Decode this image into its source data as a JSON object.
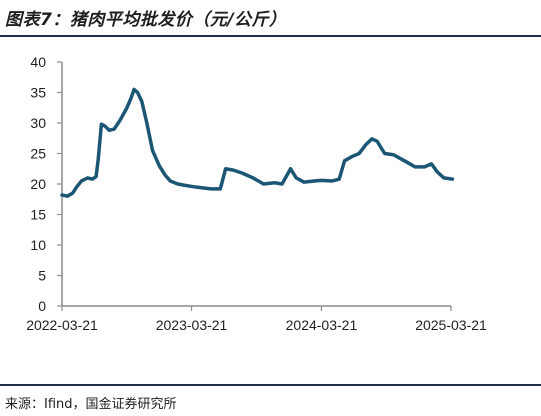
{
  "figure": {
    "title": "图表7：猪肉平均批发价（元/公斤）",
    "source": "来源：Ifind，国金证券研究所"
  },
  "chart_data": {
    "type": "line",
    "title": "猪肉平均批发价（元/公斤）",
    "xlabel": "",
    "ylabel": "",
    "ylim": [
      0,
      40
    ],
    "yticks": [
      "0",
      "5",
      "10",
      "15",
      "20",
      "25",
      "30",
      "35",
      "40"
    ],
    "xticks": [
      "2022-03-21",
      "2023-03-21",
      "2024-03-21",
      "2025-03-21"
    ],
    "grid": false,
    "legend": "none",
    "line_color": "#1b5674",
    "series": [
      {
        "name": "",
        "points": [
          [
            "2022-03-21",
            18.2
          ],
          [
            "2022-04-05",
            18.0
          ],
          [
            "2022-04-20",
            18.5
          ],
          [
            "2022-05-01",
            19.5
          ],
          [
            "2022-05-15",
            20.5
          ],
          [
            "2022-06-01",
            21.0
          ],
          [
            "2022-06-15",
            20.8
          ],
          [
            "2022-06-25",
            21.2
          ],
          [
            "2022-07-01",
            24.0
          ],
          [
            "2022-07-10",
            29.8
          ],
          [
            "2022-07-20",
            29.5
          ],
          [
            "2022-08-01",
            28.8
          ],
          [
            "2022-08-15",
            29.0
          ],
          [
            "2022-09-01",
            30.5
          ],
          [
            "2022-09-20",
            32.5
          ],
          [
            "2022-10-01",
            34.0
          ],
          [
            "2022-10-10",
            35.5
          ],
          [
            "2022-10-20",
            35.0
          ],
          [
            "2022-11-01",
            33.5
          ],
          [
            "2022-11-15",
            30.0
          ],
          [
            "2022-12-01",
            25.5
          ],
          [
            "2022-12-20",
            23.0
          ],
          [
            "2023-01-05",
            21.5
          ],
          [
            "2023-01-20",
            20.5
          ],
          [
            "2023-02-10",
            20.0
          ],
          [
            "2023-03-01",
            19.8
          ],
          [
            "2023-03-21",
            19.6
          ],
          [
            "2023-04-15",
            19.4
          ],
          [
            "2023-05-15",
            19.2
          ],
          [
            "2023-06-10",
            19.2
          ],
          [
            "2023-06-25",
            22.5
          ],
          [
            "2023-07-15",
            22.3
          ],
          [
            "2023-08-10",
            21.8
          ],
          [
            "2023-09-10",
            21.0
          ],
          [
            "2023-10-10",
            20.0
          ],
          [
            "2023-11-10",
            20.2
          ],
          [
            "2023-12-01",
            20.0
          ],
          [
            "2023-12-25",
            22.5
          ],
          [
            "2024-01-10",
            21.0
          ],
          [
            "2024-02-01",
            20.3
          ],
          [
            "2024-03-01",
            20.5
          ],
          [
            "2024-03-21",
            20.6
          ],
          [
            "2024-04-20",
            20.5
          ],
          [
            "2024-05-10",
            20.8
          ],
          [
            "2024-05-25",
            23.8
          ],
          [
            "2024-06-15",
            24.5
          ],
          [
            "2024-07-05",
            25.0
          ],
          [
            "2024-07-25",
            26.5
          ],
          [
            "2024-08-10",
            27.4
          ],
          [
            "2024-08-25",
            27.0
          ],
          [
            "2024-09-15",
            25.0
          ],
          [
            "2024-10-10",
            24.8
          ],
          [
            "2024-11-10",
            23.8
          ],
          [
            "2024-12-10",
            22.8
          ],
          [
            "2025-01-05",
            22.8
          ],
          [
            "2025-01-25",
            23.3
          ],
          [
            "2025-02-10",
            22.0
          ],
          [
            "2025-03-01",
            21.0
          ],
          [
            "2025-03-25",
            20.8
          ]
        ]
      }
    ]
  }
}
